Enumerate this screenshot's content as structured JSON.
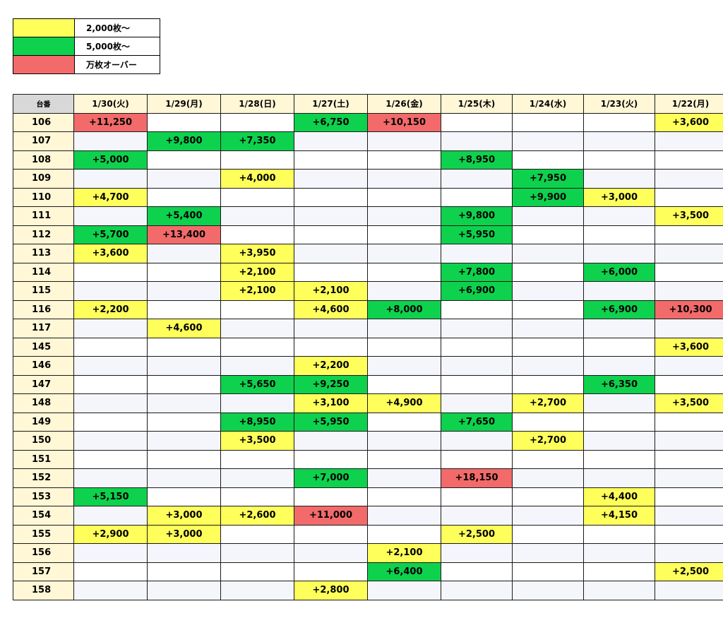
{
  "legend": [
    {
      "label": "2,000枚～",
      "color": "#ffff5c"
    },
    {
      "label": "5,000枚～",
      "color": "#0ed14d"
    },
    {
      "label": "万枚オーバー",
      "color": "#f26a6a"
    }
  ],
  "table": {
    "corner": "台番",
    "dates": [
      "1/30(火)",
      "1/29(月)",
      "1/28(日)",
      "1/27(土)",
      "1/26(金)",
      "1/25(木)",
      "1/24(水)",
      "1/23(火)",
      "1/22(月)"
    ],
    "rows": [
      {
        "id": "106",
        "cells": [
          "+11,250",
          "",
          "",
          "+6,750",
          "+10,150",
          "",
          "",
          "",
          "+3,600"
        ]
      },
      {
        "id": "107",
        "cells": [
          "",
          "+9,800",
          "+7,350",
          "",
          "",
          "",
          "",
          "",
          ""
        ]
      },
      {
        "id": "108",
        "cells": [
          "+5,000",
          "",
          "",
          "",
          "",
          "+8,950",
          "",
          "",
          ""
        ]
      },
      {
        "id": "109",
        "cells": [
          "",
          "",
          "+4,000",
          "",
          "",
          "",
          "+7,950",
          "",
          ""
        ]
      },
      {
        "id": "110",
        "cells": [
          "+4,700",
          "",
          "",
          "",
          "",
          "",
          "+9,900",
          "+3,000",
          ""
        ]
      },
      {
        "id": "111",
        "cells": [
          "",
          "+5,400",
          "",
          "",
          "",
          "+9,800",
          "",
          "",
          "+3,500"
        ]
      },
      {
        "id": "112",
        "cells": [
          "+5,700",
          "+13,400",
          "",
          "",
          "",
          "+5,950",
          "",
          "",
          ""
        ]
      },
      {
        "id": "113",
        "cells": [
          "+3,600",
          "",
          "+3,950",
          "",
          "",
          "",
          "",
          "",
          ""
        ]
      },
      {
        "id": "114",
        "cells": [
          "",
          "",
          "+2,100",
          "",
          "",
          "+7,800",
          "",
          "+6,000",
          ""
        ]
      },
      {
        "id": "115",
        "cells": [
          "",
          "",
          "+2,100",
          "+2,100",
          "",
          "+6,900",
          "",
          "",
          ""
        ]
      },
      {
        "id": "116",
        "cells": [
          "+2,200",
          "",
          "",
          "+4,600",
          "+8,000",
          "",
          "",
          "+6,900",
          "+10,300"
        ]
      },
      {
        "id": "117",
        "cells": [
          "",
          "+4,600",
          "",
          "",
          "",
          "",
          "",
          "",
          ""
        ]
      },
      {
        "id": "145",
        "cells": [
          "",
          "",
          "",
          "",
          "",
          "",
          "",
          "",
          "+3,600"
        ]
      },
      {
        "id": "146",
        "cells": [
          "",
          "",
          "",
          "+2,200",
          "",
          "",
          "",
          "",
          ""
        ]
      },
      {
        "id": "147",
        "cells": [
          "",
          "",
          "+5,650",
          "+9,250",
          "",
          "",
          "",
          "+6,350",
          ""
        ]
      },
      {
        "id": "148",
        "cells": [
          "",
          "",
          "",
          "+3,100",
          "+4,900",
          "",
          "+2,700",
          "",
          "+3,500"
        ]
      },
      {
        "id": "149",
        "cells": [
          "",
          "",
          "+8,950",
          "+5,950",
          "",
          "+7,650",
          "",
          "",
          ""
        ]
      },
      {
        "id": "150",
        "cells": [
          "",
          "",
          "+3,500",
          "",
          "",
          "",
          "+2,700",
          "",
          ""
        ]
      },
      {
        "id": "151",
        "cells": [
          "",
          "",
          "",
          "",
          "",
          "",
          "",
          "",
          ""
        ]
      },
      {
        "id": "152",
        "cells": [
          "",
          "",
          "",
          "+7,000",
          "",
          "+18,150",
          "",
          "",
          ""
        ]
      },
      {
        "id": "153",
        "cells": [
          "+5,150",
          "",
          "",
          "",
          "",
          "",
          "",
          "+4,400",
          ""
        ]
      },
      {
        "id": "154",
        "cells": [
          "",
          "+3,000",
          "+2,600",
          "+11,000",
          "",
          "",
          "",
          "+4,150",
          ""
        ]
      },
      {
        "id": "155",
        "cells": [
          "+2,900",
          "+3,000",
          "",
          "",
          "",
          "+2,500",
          "",
          "",
          ""
        ]
      },
      {
        "id": "156",
        "cells": [
          "",
          "",
          "",
          "",
          "+2,100",
          "",
          "",
          "",
          ""
        ]
      },
      {
        "id": "157",
        "cells": [
          "",
          "",
          "",
          "",
          "+6,400",
          "",
          "",
          "",
          "+2,500"
        ]
      },
      {
        "id": "158",
        "cells": [
          "",
          "",
          "",
          "+2,800",
          "",
          "",
          "",
          "",
          ""
        ]
      }
    ]
  }
}
